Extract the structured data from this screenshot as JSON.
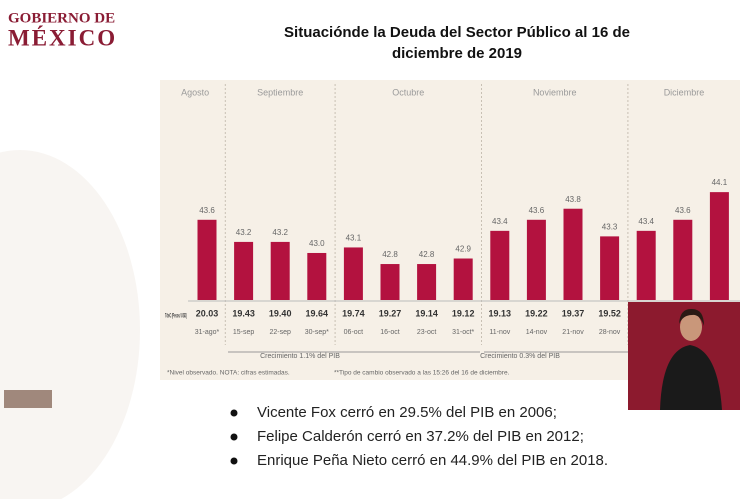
{
  "header": {
    "logo_line1": "GOBIERNO DE",
    "logo_line2": "MÉXICO"
  },
  "chart_data": {
    "type": "bar",
    "title": "Situaciónde la Deuda del Sector Público al 16 de diciembre de 2019",
    "title_lines": [
      "Situaciónde la Deuda del Sector Público al 16 de",
      "diciembre de 2019"
    ],
    "categories": [
      "31-ago*",
      "15-sep",
      "22-sep",
      "30-sep*",
      "06-oct",
      "16-oct",
      "23-oct",
      "31-oct*",
      "11-nov",
      "14-nov",
      "21-nov",
      "28-nov",
      null,
      null,
      null
    ],
    "values": [
      43.6,
      43.2,
      43.2,
      43.0,
      43.1,
      42.8,
      42.8,
      42.9,
      43.4,
      43.6,
      43.8,
      43.3,
      43.4,
      43.6,
      44.1
    ],
    "value_labels": [
      "43.6",
      "43.2",
      "43.2",
      "43.0",
      "43.1",
      "42.8",
      "42.8",
      "42.9",
      "43.4",
      "43.6",
      "43.8",
      "43.3",
      "43.4",
      "43.6",
      "44.1"
    ],
    "exchange_label": "TdeC (Pesos/ USD)",
    "exchange_rates": [
      20.03,
      19.43,
      19.4,
      19.64,
      19.74,
      19.27,
      19.14,
      19.12,
      19.13,
      19.22,
      19.37,
      19.52,
      null,
      null,
      null
    ],
    "exchange_labels": [
      "20.03",
      "19.43",
      "19.40",
      "19.64",
      "19.74",
      "19.27",
      "19.14",
      "19.12",
      "19.13",
      "19.22",
      "19.37",
      "19.52",
      null,
      null,
      null
    ],
    "groups": [
      {
        "label": "Agosto",
        "span": 1
      },
      {
        "label": "Septiembre",
        "span": 3
      },
      {
        "label": "Octubre",
        "span": 4
      },
      {
        "label": "Noviembre",
        "span": 4
      },
      {
        "label": "Diciembre",
        "span": 3
      }
    ],
    "annotations": [
      "Crecimiento 1.1% del PIB",
      "Crecimiento 0.3% del PIB",
      "*Nivel observado. NOTA: cifras estimadas.",
      "**Tipo de cambio observado a las 15:26 del 16 de diciembre."
    ],
    "color": "#b3123f",
    "ylim": [
      42.15,
      44.5
    ]
  },
  "bullets": [
    "Vicente Fox cerró en 29.5% del PIB en 2006;",
    "Felipe Calderón cerró en 37.2% del PIB en 2012;",
    "Enrique Peña Nieto cerró en 44.9% del PIB en 2018."
  ]
}
